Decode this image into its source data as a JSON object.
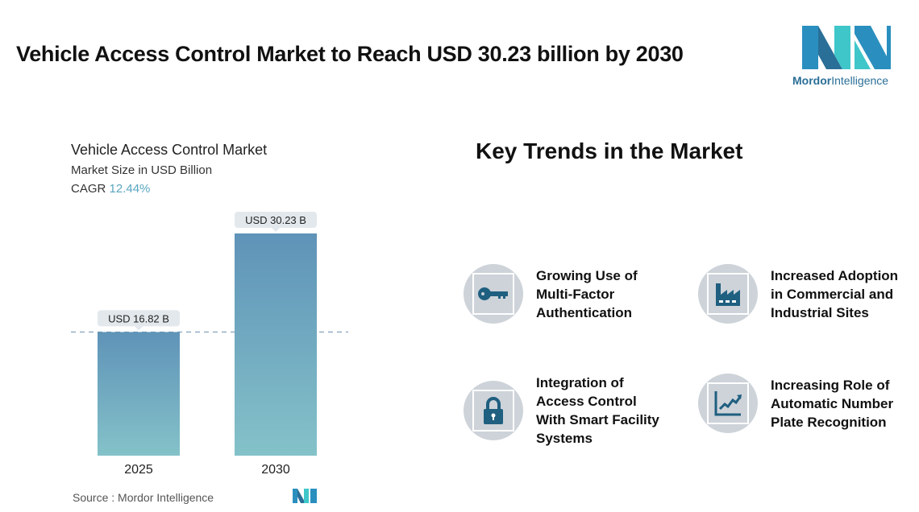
{
  "header": {
    "title": "Vehicle Access Control Market to Reach USD 30.23 billion by 2030"
  },
  "logo": {
    "brand_part1": "Mordor",
    "brand_part2": "Intelligence"
  },
  "chart_data": {
    "type": "bar",
    "title": "Vehicle Access Control Market",
    "subtitle": "Market Size in USD Billion",
    "cagr_label": "CAGR",
    "cagr_value": "12.44%",
    "categories": [
      "2025",
      "2030"
    ],
    "values": [
      16.82,
      30.23
    ],
    "data_labels": [
      "USD 16.82 B",
      "USD 30.23 B"
    ],
    "ylim": [
      0,
      30.23
    ],
    "colors": {
      "bar_top": "#5f93b8",
      "bar_bottom": "#84c2c9",
      "reference_line": "#7a9cb8"
    }
  },
  "source": "Source :  Mordor Intelligence",
  "trends": {
    "heading": "Key Trends in the Market",
    "items": [
      {
        "icon": "key-icon",
        "lines": [
          "Growing Use of",
          "Multi-Factor",
          "Authentication"
        ]
      },
      {
        "icon": "factory-icon",
        "lines": [
          "Increased Adoption",
          "in Commercial and",
          "Industrial Sites"
        ]
      },
      {
        "icon": "lock-icon",
        "lines": [
          "Integration of",
          "Access Control",
          "With Smart Facility",
          "Systems"
        ]
      },
      {
        "icon": "chart-trend-icon",
        "lines": [
          "Increasing Role of",
          "Automatic Number",
          "Plate Recognition"
        ]
      }
    ]
  },
  "colors": {
    "icon": "#1f5f80",
    "circle": "#cdd3d9"
  }
}
